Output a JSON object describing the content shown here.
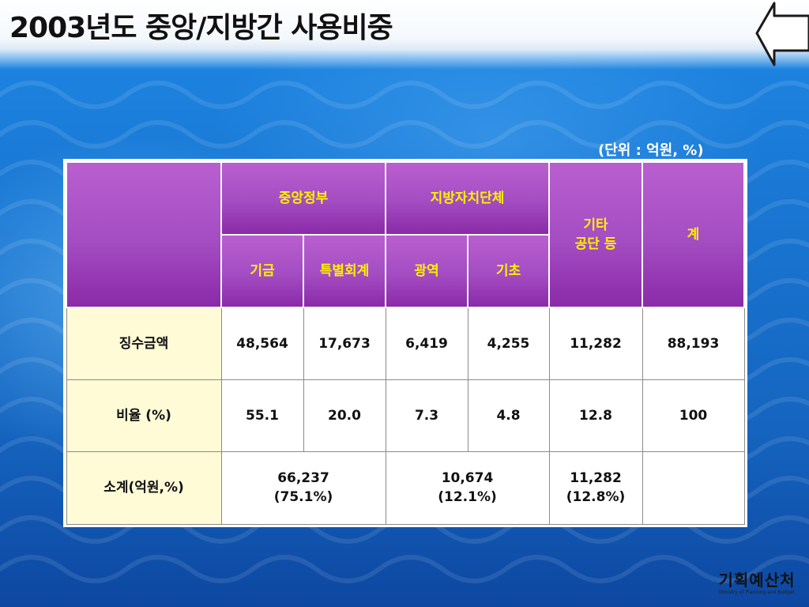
{
  "title": "2003년도 중앙/지방간 사용비중",
  "unit_note": "(단위 : 억원, %)",
  "table": {
    "h_central": "중앙정부",
    "h_local": "지방자치단체",
    "h_other_l1": "기타",
    "h_other_l2": "공단 등",
    "h_total": "계",
    "h_fund": "기금",
    "h_special": "특별회계",
    "h_regional": "광역",
    "h_basic": "기초",
    "rows": [
      {
        "label": "징수금액",
        "values": [
          "48,564",
          "17,673",
          "6,419",
          "4,255",
          "11,282",
          "88,193"
        ]
      },
      {
        "label": "비율 (%)",
        "values": [
          "55.1",
          "20.0",
          "7.3",
          "4.8",
          "12.8",
          "100"
        ]
      }
    ],
    "subtotal": {
      "label": "소계(억원,%)",
      "central_amount": "66,237",
      "central_pct": "(75.1%)",
      "local_amount": "10,674",
      "local_pct": "(12.1%)",
      "other_amount": "11,282",
      "other_pct": "(12.8%)",
      "total": ""
    }
  },
  "logo": {
    "name": "기획예산처",
    "sub": "Ministry of Planning and Budget"
  },
  "colors": {
    "header_bg": "#a44cc2",
    "header_text": "#fff200",
    "row_label_bg": "#fffbd7",
    "background": "#1565c0"
  },
  "icons": {
    "back": "left-arrow-icon"
  }
}
